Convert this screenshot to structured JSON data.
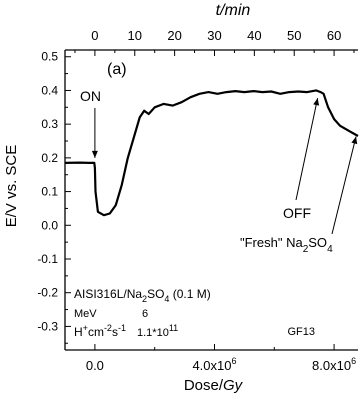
{
  "chart_data": {
    "type": "line",
    "panel_label": "(a)",
    "xlabel": "Dose/Gy",
    "xlabel_parts": {
      "main": "Dose/",
      "italic": "Gy"
    },
    "top_xlabel": "t/min",
    "ylabel": "E/V vs. SCE",
    "xlim": [
      -1000000,
      8800000
    ],
    "ylim": [
      -0.37,
      0.52
    ],
    "top_xlim": [
      -7.5,
      66
    ],
    "x_ticks": [
      {
        "value": 0,
        "label": "0.0"
      },
      {
        "value": 4000000,
        "label": "4.0x10",
        "exp": "6"
      },
      {
        "value": 8000000,
        "label": "8.0x10",
        "exp": "6"
      }
    ],
    "top_ticks": [
      {
        "value": 0,
        "label": "0"
      },
      {
        "value": 10,
        "label": "10"
      },
      {
        "value": 20,
        "label": "20"
      },
      {
        "value": 30,
        "label": "30"
      },
      {
        "value": 40,
        "label": "40"
      },
      {
        "value": 50,
        "label": "50"
      },
      {
        "value": 60,
        "label": "60"
      }
    ],
    "y_ticks": [
      {
        "value": 0.5,
        "label": "0.5"
      },
      {
        "value": 0.4,
        "label": "0.4"
      },
      {
        "value": 0.3,
        "label": "0.3"
      },
      {
        "value": 0.2,
        "label": "0.2"
      },
      {
        "value": 0.1,
        "label": "0.1"
      },
      {
        "value": 0.0,
        "label": "0.0"
      },
      {
        "value": -0.1,
        "label": "-0.1"
      },
      {
        "value": -0.2,
        "label": "-0.2"
      },
      {
        "value": -0.3,
        "label": "-0.3"
      }
    ],
    "series": [
      {
        "x": [
          -1000000,
          -500000,
          -200000,
          -20000,
          0,
          20000,
          100000,
          300000,
          500000,
          700000,
          900000,
          1100000,
          1300000,
          1500000,
          1650000,
          1800000,
          2000000,
          2300000,
          2600000,
          2900000,
          3200000,
          3500000,
          3800000,
          4100000,
          4400000,
          4700000,
          5000000,
          5300000,
          5600000,
          5900000,
          6200000,
          6500000,
          6800000,
          7100000,
          7400000,
          7550000,
          7650000,
          7800000,
          8000000,
          8200000,
          8500000,
          8800000
        ],
        "y": [
          0.185,
          0.186,
          0.185,
          0.185,
          0.17,
          0.1,
          0.04,
          0.03,
          0.035,
          0.06,
          0.12,
          0.2,
          0.26,
          0.32,
          0.34,
          0.33,
          0.35,
          0.36,
          0.355,
          0.365,
          0.38,
          0.39,
          0.395,
          0.39,
          0.395,
          0.398,
          0.395,
          0.398,
          0.395,
          0.397,
          0.39,
          0.395,
          0.397,
          0.395,
          0.4,
          0.395,
          0.39,
          0.35,
          0.315,
          0.295,
          0.28,
          0.265
        ]
      }
    ],
    "annotations": {
      "on": {
        "label": "ON",
        "x": 0,
        "y": 0.185
      },
      "off": {
        "label": "OFF",
        "x": 7550000,
        "y": 0.395
      },
      "fresh": {
        "label_main": "\"Fresh\" Na",
        "sub1": "2",
        "mid": "SO",
        "sub2": "4",
        "x": 8800000,
        "y": 0.275
      }
    },
    "legend_box": {
      "line1": {
        "main": "AISI316L/Na",
        "sub1": "2",
        "mid": "SO",
        "sub2": "4",
        "tail": " (0.1 M)"
      },
      "line2": {
        "label": "MeV",
        "value": "6"
      },
      "line3": {
        "h": "H",
        "sup1": "+",
        "cm": "cm",
        "sup2": "-2",
        "s": "s",
        "sup3": "-1",
        "value_main": "1.1*10",
        "value_exp": "11"
      }
    },
    "code": "GF13",
    "grid": false
  }
}
